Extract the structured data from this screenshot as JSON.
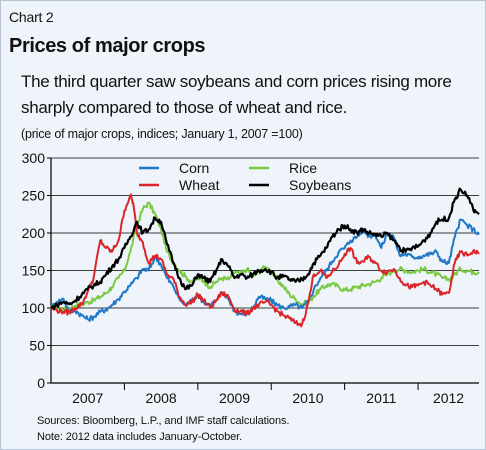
{
  "header": {
    "chart_label": "Chart 2",
    "title": "Prices of major crops",
    "subtitle": "The third quarter saw soybeans and corn prices rising more sharply compared to those of wheat and rice.",
    "units": "(price of major crops, indices; January 1, 2007 =100)"
  },
  "footer": {
    "source": "Sources: Bloomberg, L.P., and IMF staff calculations.",
    "note": "Note: 2012 data includes January-October."
  },
  "chart_data": {
    "type": "line",
    "title": "Prices of major crops",
    "subtitle": "The third quarter saw soybeans and corn prices rising more sharply compared to those of wheat and rice.",
    "ylabel": "(price of major crops, indices; January 1, 2007 =100)",
    "xlabel": "",
    "ylim": [
      0,
      300
    ],
    "yticks": [
      0,
      50,
      100,
      150,
      200,
      250,
      300
    ],
    "xlim": [
      2007.0,
      2012.83
    ],
    "xtick_labels": [
      "2007",
      "2008",
      "2009",
      "2010",
      "2011",
      "2012"
    ],
    "grid": true,
    "legend_placement": "top-center",
    "series": [
      {
        "name": "Corn",
        "color": "#1f78c8",
        "points": [
          [
            2007.0,
            100
          ],
          [
            2007.08,
            108
          ],
          [
            2007.17,
            112
          ],
          [
            2007.25,
            95
          ],
          [
            2007.33,
            97
          ],
          [
            2007.42,
            90
          ],
          [
            2007.5,
            85
          ],
          [
            2007.58,
            88
          ],
          [
            2007.67,
            95
          ],
          [
            2007.75,
            98
          ],
          [
            2007.83,
            104
          ],
          [
            2007.92,
            112
          ],
          [
            2008.0,
            122
          ],
          [
            2008.08,
            130
          ],
          [
            2008.17,
            140
          ],
          [
            2008.25,
            152
          ],
          [
            2008.33,
            150
          ],
          [
            2008.42,
            168
          ],
          [
            2008.5,
            158
          ],
          [
            2008.58,
            140
          ],
          [
            2008.67,
            128
          ],
          [
            2008.75,
            112
          ],
          [
            2008.83,
            104
          ],
          [
            2008.92,
            110
          ],
          [
            2009.0,
            118
          ],
          [
            2009.08,
            108
          ],
          [
            2009.17,
            104
          ],
          [
            2009.25,
            110
          ],
          [
            2009.33,
            120
          ],
          [
            2009.42,
            112
          ],
          [
            2009.5,
            96
          ],
          [
            2009.58,
            92
          ],
          [
            2009.67,
            93
          ],
          [
            2009.75,
            100
          ],
          [
            2009.83,
            115
          ],
          [
            2009.92,
            112
          ],
          [
            2010.0,
            110
          ],
          [
            2010.08,
            104
          ],
          [
            2010.17,
            100
          ],
          [
            2010.25,
            102
          ],
          [
            2010.33,
            104
          ],
          [
            2010.42,
            100
          ],
          [
            2010.5,
            108
          ],
          [
            2010.58,
            125
          ],
          [
            2010.67,
            140
          ],
          [
            2010.75,
            150
          ],
          [
            2010.83,
            162
          ],
          [
            2010.92,
            175
          ],
          [
            2011.0,
            180
          ],
          [
            2011.08,
            190
          ],
          [
            2011.17,
            195
          ],
          [
            2011.25,
            205
          ],
          [
            2011.33,
            196
          ],
          [
            2011.42,
            198
          ],
          [
            2011.5,
            180
          ],
          [
            2011.58,
            200
          ],
          [
            2011.67,
            195
          ],
          [
            2011.75,
            170
          ],
          [
            2011.83,
            172
          ],
          [
            2011.92,
            168
          ],
          [
            2012.0,
            168
          ],
          [
            2012.08,
            170
          ],
          [
            2012.17,
            172
          ],
          [
            2012.25,
            175
          ],
          [
            2012.33,
            162
          ],
          [
            2012.42,
            160
          ],
          [
            2012.5,
            195
          ],
          [
            2012.58,
            218
          ],
          [
            2012.67,
            210
          ],
          [
            2012.75,
            205
          ],
          [
            2012.83,
            198
          ]
        ]
      },
      {
        "name": "Wheat",
        "color": "#d9262b",
        "points": [
          [
            2007.0,
            100
          ],
          [
            2007.08,
            97
          ],
          [
            2007.17,
            95
          ],
          [
            2007.25,
            94
          ],
          [
            2007.33,
            100
          ],
          [
            2007.42,
            105
          ],
          [
            2007.5,
            122
          ],
          [
            2007.58,
            140
          ],
          [
            2007.67,
            190
          ],
          [
            2007.75,
            180
          ],
          [
            2007.83,
            175
          ],
          [
            2007.92,
            190
          ],
          [
            2008.0,
            230
          ],
          [
            2008.08,
            250
          ],
          [
            2008.12,
            240
          ],
          [
            2008.17,
            200
          ],
          [
            2008.25,
            188
          ],
          [
            2008.33,
            160
          ],
          [
            2008.42,
            170
          ],
          [
            2008.5,
            165
          ],
          [
            2008.58,
            145
          ],
          [
            2008.67,
            138
          ],
          [
            2008.75,
            115
          ],
          [
            2008.83,
            105
          ],
          [
            2008.92,
            108
          ],
          [
            2009.0,
            118
          ],
          [
            2009.08,
            110
          ],
          [
            2009.17,
            100
          ],
          [
            2009.25,
            110
          ],
          [
            2009.33,
            120
          ],
          [
            2009.42,
            115
          ],
          [
            2009.5,
            98
          ],
          [
            2009.58,
            96
          ],
          [
            2009.67,
            92
          ],
          [
            2009.75,
            100
          ],
          [
            2009.83,
            104
          ],
          [
            2009.92,
            108
          ],
          [
            2010.0,
            104
          ],
          [
            2010.08,
            96
          ],
          [
            2010.17,
            90
          ],
          [
            2010.25,
            86
          ],
          [
            2010.33,
            80
          ],
          [
            2010.42,
            78
          ],
          [
            2010.5,
            105
          ],
          [
            2010.58,
            145
          ],
          [
            2010.67,
            150
          ],
          [
            2010.75,
            140
          ],
          [
            2010.83,
            148
          ],
          [
            2010.92,
            158
          ],
          [
            2011.0,
            172
          ],
          [
            2011.08,
            180
          ],
          [
            2011.17,
            160
          ],
          [
            2011.25,
            162
          ],
          [
            2011.33,
            168
          ],
          [
            2011.42,
            160
          ],
          [
            2011.5,
            150
          ],
          [
            2011.58,
            148
          ],
          [
            2011.67,
            152
          ],
          [
            2011.75,
            140
          ],
          [
            2011.83,
            130
          ],
          [
            2011.92,
            128
          ],
          [
            2012.0,
            130
          ],
          [
            2012.08,
            135
          ],
          [
            2012.17,
            130
          ],
          [
            2012.25,
            125
          ],
          [
            2012.33,
            118
          ],
          [
            2012.42,
            120
          ],
          [
            2012.5,
            160
          ],
          [
            2012.58,
            175
          ],
          [
            2012.67,
            170
          ],
          [
            2012.75,
            176
          ],
          [
            2012.83,
            172
          ]
        ]
      },
      {
        "name": "Rice",
        "color": "#7ac943",
        "points": [
          [
            2007.0,
            100
          ],
          [
            2007.08,
            102
          ],
          [
            2007.17,
            98
          ],
          [
            2007.25,
            100
          ],
          [
            2007.33,
            103
          ],
          [
            2007.42,
            105
          ],
          [
            2007.5,
            108
          ],
          [
            2007.58,
            110
          ],
          [
            2007.67,
            115
          ],
          [
            2007.75,
            120
          ],
          [
            2007.83,
            128
          ],
          [
            2007.92,
            140
          ],
          [
            2008.0,
            150
          ],
          [
            2008.08,
            175
          ],
          [
            2008.17,
            210
          ],
          [
            2008.25,
            232
          ],
          [
            2008.33,
            240
          ],
          [
            2008.42,
            225
          ],
          [
            2008.5,
            205
          ],
          [
            2008.58,
            175
          ],
          [
            2008.67,
            160
          ],
          [
            2008.75,
            150
          ],
          [
            2008.83,
            142
          ],
          [
            2008.92,
            135
          ],
          [
            2009.0,
            140
          ],
          [
            2009.08,
            136
          ],
          [
            2009.17,
            128
          ],
          [
            2009.25,
            135
          ],
          [
            2009.33,
            140
          ],
          [
            2009.42,
            138
          ],
          [
            2009.5,
            148
          ],
          [
            2009.58,
            145
          ],
          [
            2009.67,
            152
          ],
          [
            2009.75,
            142
          ],
          [
            2009.83,
            148
          ],
          [
            2009.92,
            155
          ],
          [
            2010.0,
            148
          ],
          [
            2010.08,
            138
          ],
          [
            2010.17,
            128
          ],
          [
            2010.25,
            118
          ],
          [
            2010.33,
            112
          ],
          [
            2010.42,
            105
          ],
          [
            2010.5,
            108
          ],
          [
            2010.58,
            116
          ],
          [
            2010.67,
            125
          ],
          [
            2010.75,
            130
          ],
          [
            2010.83,
            132
          ],
          [
            2010.92,
            128
          ],
          [
            2011.0,
            124
          ],
          [
            2011.08,
            125
          ],
          [
            2011.17,
            128
          ],
          [
            2011.25,
            130
          ],
          [
            2011.33,
            132
          ],
          [
            2011.42,
            135
          ],
          [
            2011.5,
            140
          ],
          [
            2011.58,
            145
          ],
          [
            2011.67,
            150
          ],
          [
            2011.75,
            152
          ],
          [
            2011.83,
            150
          ],
          [
            2011.92,
            148
          ],
          [
            2012.0,
            150
          ],
          [
            2012.08,
            152
          ],
          [
            2012.17,
            148
          ],
          [
            2012.25,
            145
          ],
          [
            2012.33,
            140
          ],
          [
            2012.42,
            138
          ],
          [
            2012.5,
            145
          ],
          [
            2012.58,
            152
          ],
          [
            2012.67,
            150
          ],
          [
            2012.75,
            148
          ],
          [
            2012.83,
            148
          ]
        ]
      },
      {
        "name": "Soybeans",
        "color": "#000000",
        "points": [
          [
            2007.0,
            100
          ],
          [
            2007.08,
            104
          ],
          [
            2007.17,
            108
          ],
          [
            2007.25,
            105
          ],
          [
            2007.33,
            110
          ],
          [
            2007.42,
            118
          ],
          [
            2007.5,
            125
          ],
          [
            2007.58,
            130
          ],
          [
            2007.67,
            135
          ],
          [
            2007.75,
            145
          ],
          [
            2007.83,
            155
          ],
          [
            2007.92,
            165
          ],
          [
            2008.0,
            180
          ],
          [
            2008.08,
            195
          ],
          [
            2008.17,
            215
          ],
          [
            2008.25,
            200
          ],
          [
            2008.33,
            205
          ],
          [
            2008.42,
            220
          ],
          [
            2008.5,
            215
          ],
          [
            2008.58,
            185
          ],
          [
            2008.67,
            160
          ],
          [
            2008.75,
            140
          ],
          [
            2008.83,
            125
          ],
          [
            2008.92,
            130
          ],
          [
            2009.0,
            145
          ],
          [
            2009.08,
            140
          ],
          [
            2009.17,
            135
          ],
          [
            2009.25,
            150
          ],
          [
            2009.33,
            165
          ],
          [
            2009.42,
            155
          ],
          [
            2009.5,
            140
          ],
          [
            2009.58,
            145
          ],
          [
            2009.67,
            140
          ],
          [
            2009.75,
            145
          ],
          [
            2009.83,
            150
          ],
          [
            2009.92,
            152
          ],
          [
            2010.0,
            148
          ],
          [
            2010.08,
            140
          ],
          [
            2010.17,
            142
          ],
          [
            2010.25,
            138
          ],
          [
            2010.33,
            135
          ],
          [
            2010.42,
            138
          ],
          [
            2010.5,
            145
          ],
          [
            2010.58,
            160
          ],
          [
            2010.67,
            170
          ],
          [
            2010.75,
            180
          ],
          [
            2010.83,
            195
          ],
          [
            2010.92,
            205
          ],
          [
            2011.0,
            210
          ],
          [
            2011.08,
            205
          ],
          [
            2011.17,
            200
          ],
          [
            2011.25,
            205
          ],
          [
            2011.33,
            200
          ],
          [
            2011.42,
            198
          ],
          [
            2011.5,
            195
          ],
          [
            2011.58,
            200
          ],
          [
            2011.67,
            190
          ],
          [
            2011.75,
            180
          ],
          [
            2011.83,
            175
          ],
          [
            2011.92,
            180
          ],
          [
            2012.0,
            182
          ],
          [
            2012.08,
            190
          ],
          [
            2012.17,
            200
          ],
          [
            2012.25,
            215
          ],
          [
            2012.33,
            218
          ],
          [
            2012.42,
            220
          ],
          [
            2012.5,
            245
          ],
          [
            2012.58,
            258
          ],
          [
            2012.67,
            250
          ],
          [
            2012.75,
            232
          ],
          [
            2012.83,
            225
          ]
        ]
      }
    ]
  }
}
